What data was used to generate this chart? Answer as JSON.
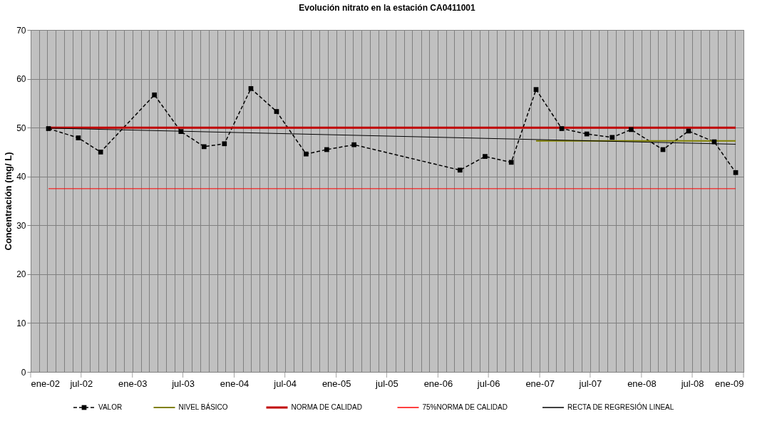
{
  "chart_data": {
    "type": "line",
    "title": "Evolución nitrato en la estación CA0411001",
    "ylabel": "Concentración (mg/ L)",
    "xlim": [
      "2002-01",
      "2009-01"
    ],
    "ylim": [
      0,
      70
    ],
    "yticks": [
      0,
      10,
      20,
      30,
      40,
      50,
      60,
      70
    ],
    "xticks": [
      {
        "value": "2002-01",
        "label": "ene-02"
      },
      {
        "value": "2002-02",
        "label": null
      },
      {
        "value": "2002-03",
        "label": null
      },
      {
        "value": "2002-04",
        "label": null
      },
      {
        "value": "2002-05",
        "label": null
      },
      {
        "value": "2002-06",
        "label": null
      },
      {
        "value": "2002-07",
        "label": "jul-02"
      },
      {
        "value": "2002-08",
        "label": null
      },
      {
        "value": "2002-09",
        "label": null
      },
      {
        "value": "2002-10",
        "label": null
      },
      {
        "value": "2002-11",
        "label": null
      },
      {
        "value": "2002-12",
        "label": null
      },
      {
        "value": "2003-01",
        "label": "ene-03"
      },
      {
        "value": "2003-02",
        "label": null
      },
      {
        "value": "2003-03",
        "label": null
      },
      {
        "value": "2003-04",
        "label": null
      },
      {
        "value": "2003-05",
        "label": null
      },
      {
        "value": "2003-06",
        "label": null
      },
      {
        "value": "2003-07",
        "label": "jul-03"
      },
      {
        "value": "2003-08",
        "label": null
      },
      {
        "value": "2003-09",
        "label": null
      },
      {
        "value": "2003-10",
        "label": null
      },
      {
        "value": "2003-11",
        "label": null
      },
      {
        "value": "2003-12",
        "label": null
      },
      {
        "value": "2004-01",
        "label": "ene-04"
      },
      {
        "value": "2004-02",
        "label": null
      },
      {
        "value": "2004-03",
        "label": null
      },
      {
        "value": "2004-04",
        "label": null
      },
      {
        "value": "2004-05",
        "label": null
      },
      {
        "value": "2004-06",
        "label": null
      },
      {
        "value": "2004-07",
        "label": "jul-04"
      },
      {
        "value": "2004-08",
        "label": null
      },
      {
        "value": "2004-09",
        "label": null
      },
      {
        "value": "2004-10",
        "label": null
      },
      {
        "value": "2004-11",
        "label": null
      },
      {
        "value": "2004-12",
        "label": null
      },
      {
        "value": "2005-01",
        "label": "ene-05"
      },
      {
        "value": "2005-02",
        "label": null
      },
      {
        "value": "2005-03",
        "label": null
      },
      {
        "value": "2005-04",
        "label": null
      },
      {
        "value": "2005-05",
        "label": null
      },
      {
        "value": "2005-06",
        "label": null
      },
      {
        "value": "2005-07",
        "label": "jul-05"
      },
      {
        "value": "2005-08",
        "label": null
      },
      {
        "value": "2005-09",
        "label": null
      },
      {
        "value": "2005-10",
        "label": null
      },
      {
        "value": "2005-11",
        "label": null
      },
      {
        "value": "2005-12",
        "label": null
      },
      {
        "value": "2006-01",
        "label": "ene-06"
      },
      {
        "value": "2006-02",
        "label": null
      },
      {
        "value": "2006-03",
        "label": null
      },
      {
        "value": "2006-04",
        "label": null
      },
      {
        "value": "2006-05",
        "label": null
      },
      {
        "value": "2006-06",
        "label": null
      },
      {
        "value": "2006-07",
        "label": "jul-06"
      },
      {
        "value": "2006-08",
        "label": null
      },
      {
        "value": "2006-09",
        "label": null
      },
      {
        "value": "2006-10",
        "label": null
      },
      {
        "value": "2006-11",
        "label": null
      },
      {
        "value": "2006-12",
        "label": null
      },
      {
        "value": "2007-01",
        "label": "ene-07"
      },
      {
        "value": "2007-02",
        "label": null
      },
      {
        "value": "2007-03",
        "label": null
      },
      {
        "value": "2007-04",
        "label": null
      },
      {
        "value": "2007-05",
        "label": null
      },
      {
        "value": "2007-06",
        "label": null
      },
      {
        "value": "2007-07",
        "label": "jul-07"
      },
      {
        "value": "2007-08",
        "label": null
      },
      {
        "value": "2007-09",
        "label": null
      },
      {
        "value": "2007-10",
        "label": null
      },
      {
        "value": "2007-11",
        "label": null
      },
      {
        "value": "2007-12",
        "label": null
      },
      {
        "value": "2008-01",
        "label": "ene-08"
      },
      {
        "value": "2008-02",
        "label": null
      },
      {
        "value": "2008-03",
        "label": null
      },
      {
        "value": "2008-04",
        "label": null
      },
      {
        "value": "2008-05",
        "label": null
      },
      {
        "value": "2008-06",
        "label": null
      },
      {
        "value": "2008-07",
        "label": "jul-08"
      },
      {
        "value": "2008-08",
        "label": null
      },
      {
        "value": "2008-09",
        "label": null
      },
      {
        "value": "2008-10",
        "label": null
      },
      {
        "value": "2008-11",
        "label": null
      },
      {
        "value": "2008-12",
        "label": null
      },
      {
        "value": "2009-01",
        "label": "ene-09"
      }
    ],
    "grid": true,
    "legend": "bottom",
    "series": [
      {
        "name": "VALOR",
        "color": "#000000",
        "type": "line",
        "line_style": "dashed",
        "marker": "square",
        "x": [
          "2002-03-06",
          "2002-06-21",
          "2002-09-09",
          "2003-03-21",
          "2003-06-24",
          "2003-09-15",
          "2003-11-27",
          "2004-03-01",
          "2004-06-01",
          "2004-09-15",
          "2004-11-28",
          "2005-03-06",
          "2006-03-21",
          "2006-06-19",
          "2006-09-21",
          "2006-12-19",
          "2007-03-21",
          "2007-06-19",
          "2007-09-18",
          "2007-11-25",
          "2008-03-18",
          "2008-06-18",
          "2008-09-18",
          "2008-12-04"
        ],
        "values": [
          49.8,
          47.9,
          45.0,
          56.7,
          49.2,
          46.1,
          46.7,
          58.0,
          53.3,
          44.6,
          45.5,
          46.5,
          41.3,
          44.1,
          42.9,
          57.8,
          49.8,
          48.7,
          48.0,
          49.6,
          45.5,
          49.3,
          47.1,
          40.8
        ]
      },
      {
        "name": "NIVEL BÁSICO",
        "color": "#808000",
        "type": "line",
        "line_style": "solid",
        "marker": "none",
        "x": [
          "2006-12-19",
          "2008-12-04"
        ],
        "values": [
          47.3,
          47.3
        ]
      },
      {
        "name": "NORMA DE CALIDAD",
        "color": "#c00000",
        "type": "line",
        "line_style": "solid",
        "marker": "none",
        "x": [
          "2002-03-06",
          "2008-12-04"
        ],
        "values": [
          50,
          50
        ]
      },
      {
        "name": "75%NORMA DE CALIDAD",
        "color": "#ff0000",
        "type": "line",
        "line_style": "solid",
        "marker": "none",
        "x": [
          "2002-03-06",
          "2008-12-04"
        ],
        "values": [
          37.5,
          37.5
        ]
      },
      {
        "name": "RECTA DE REGRESIÓN LINEAL",
        "color": "#000000",
        "type": "line",
        "line_style": "solid",
        "x": [
          "2002-03-06",
          "2008-12-04"
        ],
        "values": [
          49.9,
          46.6
        ]
      }
    ]
  }
}
